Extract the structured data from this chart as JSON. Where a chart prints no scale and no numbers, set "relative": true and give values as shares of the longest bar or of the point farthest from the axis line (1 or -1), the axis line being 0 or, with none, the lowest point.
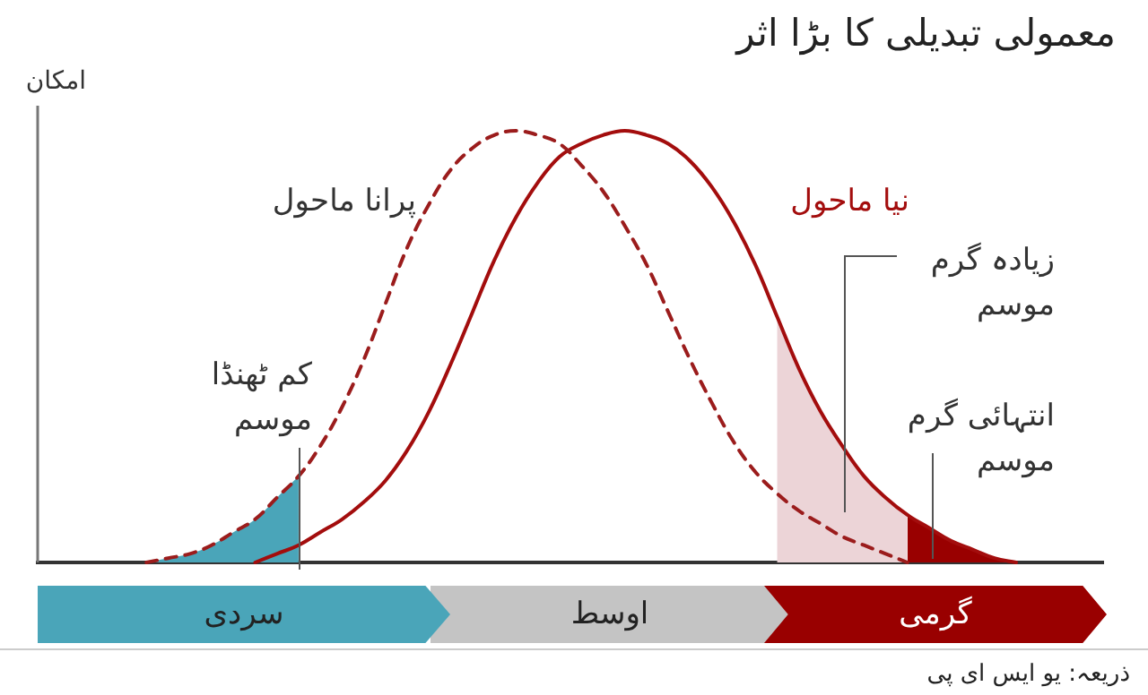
{
  "chart_data": {
    "type": "line",
    "title": "معمولی تبدیلی کا بڑا اثر",
    "ylabel": "امکان",
    "relative": true,
    "categories": [
      null,
      null,
      null,
      null,
      null,
      null,
      null,
      null,
      null,
      null,
      null,
      null,
      null,
      null,
      null,
      null,
      null,
      null,
      null,
      null,
      null,
      null,
      null,
      null,
      null,
      null,
      null,
      null,
      null,
      null,
      null,
      null,
      null,
      null,
      null,
      null,
      null,
      null,
      null,
      null,
      null,
      null,
      null,
      null,
      null,
      null,
      null,
      null,
      null,
      null
    ],
    "series": [
      {
        "name": "پرانا ماحول",
        "line_style": "dashed",
        "color": "#9b1c1c",
        "values": [
          null,
          null,
          null,
          null,
          null,
          0,
          0.01,
          0.02,
          0.04,
          0.07,
          0.1,
          0.15,
          0.2,
          0.27,
          0.36,
          0.47,
          0.6,
          0.73,
          0.83,
          0.91,
          0.96,
          0.99,
          1,
          0.99,
          0.97,
          0.92,
          0.86,
          0.78,
          0.69,
          0.58,
          0.47,
          0.37,
          0.28,
          0.21,
          0.16,
          0.12,
          0.09,
          0.06,
          0.04,
          0.02,
          0,
          null,
          null,
          null,
          null,
          null,
          null,
          null,
          null,
          null
        ]
      },
      {
        "name": "نیا ماحول",
        "color": "#a30d0d",
        "values": [
          null,
          null,
          null,
          null,
          null,
          null,
          null,
          null,
          null,
          null,
          0,
          0.02,
          0.04,
          0.07,
          0.1,
          0.14,
          0.19,
          0.26,
          0.35,
          0.46,
          0.58,
          0.7,
          0.8,
          0.88,
          0.94,
          0.97,
          0.99,
          1,
          0.99,
          0.97,
          0.93,
          0.87,
          0.79,
          0.69,
          0.57,
          0.45,
          0.35,
          0.27,
          0.2,
          0.15,
          0.11,
          0.08,
          0.05,
          0.03,
          0.01,
          0,
          null,
          null,
          null,
          null
        ]
      },
      {
        "name": "کم ٹھنڈا موسم",
        "type": "area",
        "color": "#4aa5b9",
        "values": [
          null,
          null,
          null,
          null,
          null,
          0,
          0.01,
          0.02,
          0.04,
          0.07,
          0.1,
          0.15,
          0.2,
          null,
          null,
          null,
          null,
          null,
          null,
          null,
          null,
          null,
          null,
          null,
          null,
          null,
          null,
          null,
          null,
          null,
          null,
          null,
          null,
          null,
          null,
          null,
          null,
          null,
          null,
          null,
          null,
          null,
          null,
          null,
          null,
          null,
          null,
          null,
          null,
          null
        ]
      },
      {
        "name": "زیادہ گرم موسم",
        "type": "area",
        "color": "#ecd4d7",
        "values": [
          null,
          null,
          null,
          null,
          null,
          null,
          null,
          null,
          null,
          null,
          null,
          null,
          null,
          null,
          null,
          null,
          null,
          null,
          null,
          null,
          null,
          null,
          null,
          null,
          null,
          null,
          null,
          null,
          null,
          null,
          null,
          null,
          null,
          null,
          0.57,
          0.45,
          0.35,
          0.27,
          0.2,
          0.15,
          0.11,
          null,
          null,
          null,
          null,
          null,
          null,
          null,
          null,
          null
        ]
      },
      {
        "name": "انتہائی گرم موسم",
        "type": "area",
        "color": "#990000",
        "values": [
          null,
          null,
          null,
          null,
          null,
          null,
          null,
          null,
          null,
          null,
          null,
          null,
          null,
          null,
          null,
          null,
          null,
          null,
          null,
          null,
          null,
          null,
          null,
          null,
          null,
          null,
          null,
          null,
          null,
          null,
          null,
          null,
          null,
          null,
          null,
          null,
          null,
          null,
          null,
          null,
          0.11,
          0.08,
          0.05,
          0.03,
          0.01,
          0,
          null,
          null,
          null,
          null
        ]
      }
    ],
    "annotations": [
      "سردی",
      "اوسط",
      "گرمی",
      "ذریعہ: یو ایس ای پی"
    ]
  }
}
